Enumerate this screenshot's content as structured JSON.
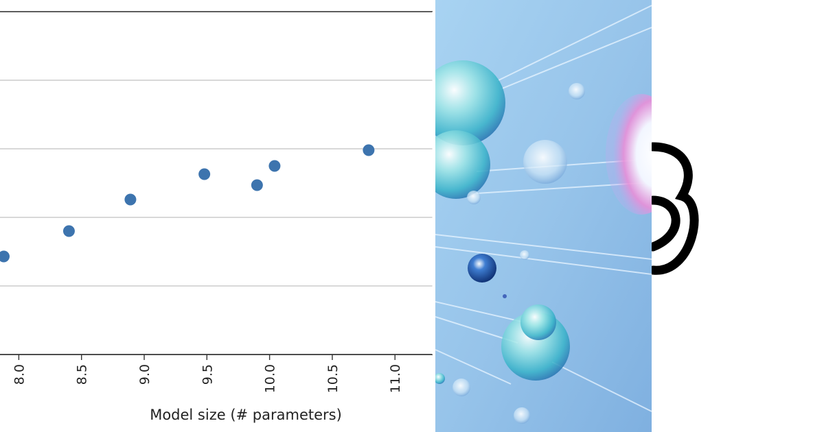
{
  "chart_data": {
    "type": "scatter",
    "xlabel": "Model size (# parameters)",
    "xlim": [
      7.85,
      11.3
    ],
    "xticks": [
      "8.0",
      "8.5",
      "9.0",
      "9.5",
      "10.0",
      "10.5",
      "11.0"
    ],
    "grid": "horizontal",
    "point_color": "#3d74ae",
    "points": [
      {
        "x": 7.88,
        "y": 1.43
      },
      {
        "x": 8.4,
        "y": 1.8
      },
      {
        "x": 8.89,
        "y": 2.26
      },
      {
        "x": 9.48,
        "y": 2.63
      },
      {
        "x": 9.9,
        "y": 2.47
      },
      {
        "x": 10.04,
        "y": 2.75
      },
      {
        "x": 10.79,
        "y": 2.98
      }
    ]
  },
  "artwork": {
    "description_icon": "glass-spheres-artwork",
    "background_color": "#9cc9ec"
  },
  "logo": {
    "icon": "partial-logo-icon",
    "color": "#000000"
  }
}
